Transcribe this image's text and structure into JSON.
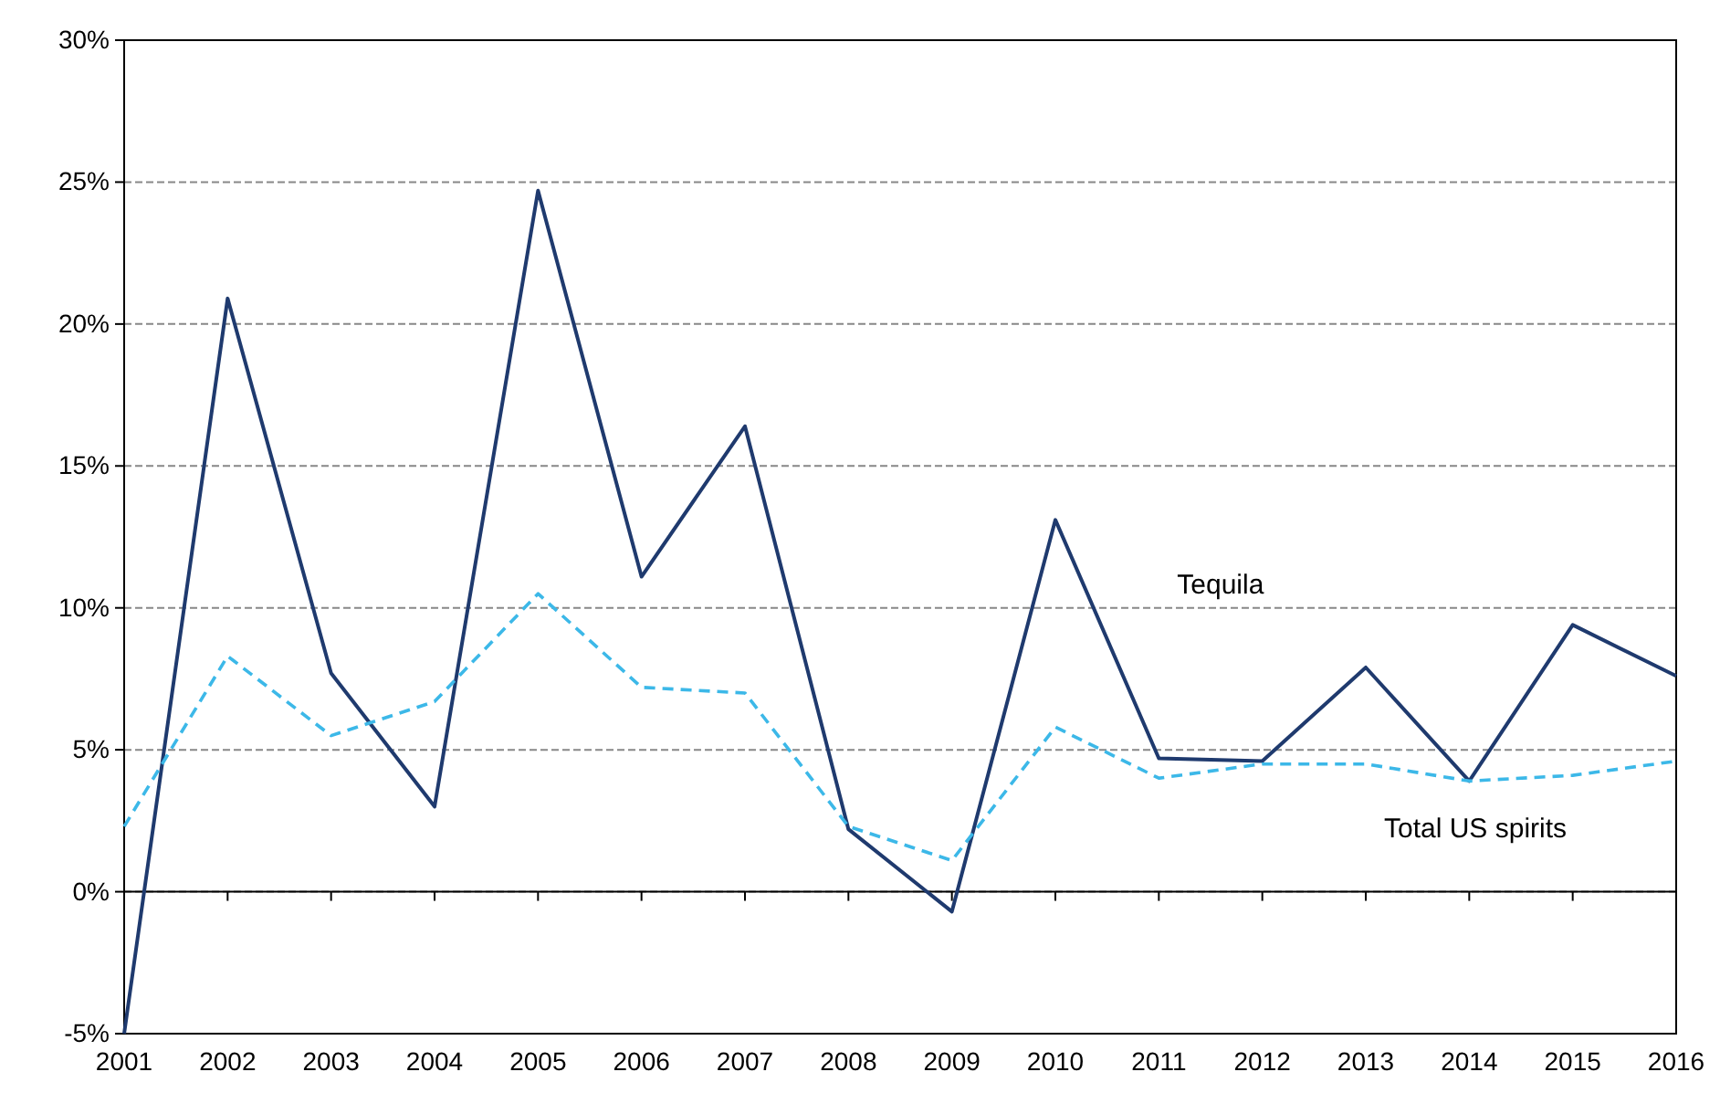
{
  "chart_data": {
    "type": "line",
    "categories": [
      "2001",
      "2002",
      "2003",
      "2004",
      "2005",
      "2006",
      "2007",
      "2008",
      "2009",
      "2010",
      "2011",
      "2012",
      "2013",
      "2014",
      "2015",
      "2016"
    ],
    "ylim": [
      -5,
      30
    ],
    "yticks": [
      {
        "value": -5,
        "label": "-5%"
      },
      {
        "value": 0,
        "label": "0%"
      },
      {
        "value": 5,
        "label": "5%"
      },
      {
        "value": 10,
        "label": "10%"
      },
      {
        "value": 15,
        "label": "15%"
      },
      {
        "value": 20,
        "label": "20%"
      },
      {
        "value": 25,
        "label": "25%"
      },
      {
        "value": 30,
        "label": "30%"
      }
    ],
    "grid": "y",
    "legend": false,
    "marker": "none",
    "series": [
      {
        "name": "Tequila",
        "color": "#1f3a6e",
        "line_style": "solid",
        "values": [
          -5,
          20.9,
          7.7,
          3.0,
          24.7,
          11.1,
          16.4,
          2.2,
          -0.7,
          13.1,
          4.7,
          4.6,
          7.9,
          3.9,
          9.4,
          7.6
        ]
      },
      {
        "name": "Total US spirits",
        "color": "#3cb8e8",
        "line_style": "dashed",
        "values": [
          2.3,
          8.3,
          5.5,
          6.7,
          10.5,
          7.2,
          7.0,
          2.3,
          1.1,
          5.8,
          4.0,
          4.5,
          4.5,
          3.9,
          4.1,
          4.6
        ]
      }
    ]
  }
}
